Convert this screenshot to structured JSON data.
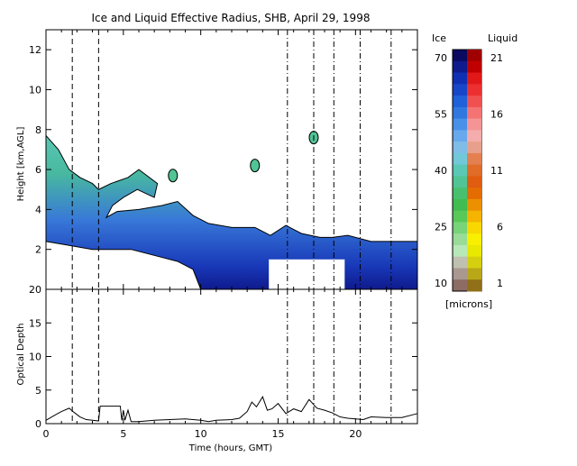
{
  "chart_data": [
    {
      "type": "heatmap",
      "title": "Ice and Liquid Effective Radius, SHB, April 29, 1998",
      "xlabel": "",
      "ylabel": "Height [km,AGL]",
      "xlim": [
        0,
        24
      ],
      "ylim": [
        0,
        13
      ],
      "xticks": [
        0,
        5,
        10,
        15,
        20
      ],
      "yticks": [
        2,
        4,
        6,
        8,
        10,
        12
      ],
      "grid": false,
      "vertical_lines": [
        {
          "x": 1.7,
          "style": "dashed"
        },
        {
          "x": 3.4,
          "style": "dashed"
        },
        {
          "x": 15.6,
          "style": "dash-dot"
        },
        {
          "x": 17.3,
          "style": "dash-dot"
        },
        {
          "x": 18.6,
          "style": "dash-dot"
        },
        {
          "x": 20.3,
          "style": "dash-dot"
        },
        {
          "x": 22.3,
          "style": "dash-dot"
        }
      ],
      "cloud_layer": {
        "top_km": [
          [
            0.0,
            7.7
          ],
          [
            0.8,
            7.0
          ],
          [
            1.5,
            6.0
          ],
          [
            2.2,
            5.6
          ],
          [
            3.0,
            5.3
          ],
          [
            3.4,
            5.0
          ],
          [
            4.2,
            5.3
          ],
          [
            5.3,
            5.6
          ],
          [
            6.0,
            6.0
          ],
          [
            7.2,
            5.3
          ],
          [
            7.0,
            4.6
          ],
          [
            5.9,
            5.0
          ],
          [
            5.0,
            4.6
          ],
          [
            4.3,
            4.2
          ],
          [
            3.9,
            3.6
          ],
          [
            4.6,
            3.9
          ],
          [
            6.0,
            4.0
          ],
          [
            7.5,
            4.2
          ],
          [
            8.5,
            4.4
          ],
          [
            9.5,
            3.7
          ],
          [
            10.5,
            3.3
          ],
          [
            12.0,
            3.1
          ],
          [
            13.5,
            3.1
          ],
          [
            14.5,
            2.7
          ],
          [
            15.5,
            3.2
          ],
          [
            16.5,
            2.8
          ],
          [
            17.7,
            2.6
          ],
          [
            18.5,
            2.6
          ],
          [
            19.5,
            2.7
          ],
          [
            21.0,
            2.4
          ],
          [
            24.0,
            2.4
          ]
        ],
        "base_km": [
          [
            0.0,
            2.4
          ],
          [
            1.5,
            2.2
          ],
          [
            3.0,
            2.0
          ],
          [
            5.5,
            2.0
          ],
          [
            7.5,
            1.6
          ],
          [
            8.5,
            1.4
          ],
          [
            9.5,
            1.0
          ],
          [
            10.0,
            0.0
          ],
          [
            24.0,
            0.0
          ]
        ],
        "gap_region": {
          "x": [
            14.4,
            19.3
          ],
          "y_km": [
            0.0,
            1.5
          ]
        },
        "isolated_patches": [
          [
            17.3,
            7.6
          ],
          [
            13.5,
            6.2
          ],
          [
            8.2,
            5.7
          ]
        ]
      }
    },
    {
      "type": "line",
      "title": "",
      "xlabel": "Time (hours, GMT)",
      "ylabel": "Optical Depth",
      "xlim": [
        0,
        24
      ],
      "ylim": [
        0,
        20
      ],
      "xticks": [
        0,
        5,
        10,
        15,
        20
      ],
      "xtick_labels": [
        "0",
        "5",
        "10",
        "15",
        "20"
      ],
      "yticks": [
        0,
        5,
        10,
        15,
        20
      ],
      "ytick_labels": [
        "0",
        "5",
        "10",
        "15",
        "20"
      ],
      "grid": false,
      "series": [
        {
          "x": [
            0.0,
            0.6,
            1.0,
            1.5,
            1.8,
            2.2,
            2.6,
            3.0,
            3.4,
            3.5,
            3.6,
            4.8,
            4.9,
            5.0,
            5.1,
            5.3,
            5.5,
            6.0,
            7.0,
            8.0,
            9.0,
            10.0,
            10.5,
            11.0,
            12.0,
            12.5,
            13.0,
            13.3,
            13.6,
            14.0,
            14.3,
            14.6,
            15.0,
            15.5,
            16.0,
            16.5,
            17.0,
            17.5,
            18.0,
            18.5,
            19.0,
            19.5,
            20.0,
            20.5,
            21.0,
            22.0,
            23.0,
            24.0
          ],
          "y": [
            0.5,
            1.3,
            1.8,
            2.3,
            1.7,
            1.0,
            0.6,
            0.5,
            0.4,
            2.6,
            2.6,
            2.6,
            0.5,
            2.0,
            0.5,
            2.0,
            0.3,
            0.3,
            0.5,
            0.6,
            0.7,
            0.5,
            0.3,
            0.5,
            0.6,
            0.8,
            1.8,
            3.2,
            2.5,
            4.0,
            2.0,
            2.2,
            3.0,
            1.5,
            2.2,
            1.8,
            3.6,
            2.3,
            2.0,
            1.6,
            1.0,
            0.8,
            0.7,
            0.6,
            1.0,
            0.9,
            0.9,
            1.5
          ]
        }
      ],
      "vertical_lines": [
        {
          "x": 1.7,
          "style": "dashed"
        },
        {
          "x": 3.4,
          "style": "dashed"
        },
        {
          "x": 15.6,
          "style": "dash-dot"
        },
        {
          "x": 17.3,
          "style": "dash-dot"
        },
        {
          "x": 18.6,
          "style": "dash-dot"
        },
        {
          "x": 20.3,
          "style": "dash-dot"
        },
        {
          "x": 22.3,
          "style": "dash-dot"
        }
      ]
    }
  ],
  "colorbar": {
    "ice_label": "Ice",
    "liquid_label": "Liquid",
    "units": "[microns]",
    "ice_ticks": [
      "70",
      "55",
      "40",
      "25",
      "10"
    ],
    "liquid_ticks": [
      "21",
      "16",
      "11",
      "6",
      "1"
    ],
    "ice_colors": [
      "#0a0a60",
      "#0f1a8c",
      "#1030b4",
      "#1846c8",
      "#2060d8",
      "#3078e0",
      "#4890e8",
      "#68a8ec",
      "#80bce8",
      "#70c8d8",
      "#5ac8b4",
      "#50c494",
      "#48c070",
      "#40bc50",
      "#58c858",
      "#78d478",
      "#98dc98",
      "#b8e8b8",
      "#c0c0b0",
      "#a89890",
      "#8c6c64"
    ],
    "liquid_colors": [
      "#a00000",
      "#c00000",
      "#e01818",
      "#ec3030",
      "#f05050",
      "#f47474",
      "#f49494",
      "#f4acac",
      "#e8a08c",
      "#e48050",
      "#e06c28",
      "#e05c10",
      "#e46c00",
      "#ec9000",
      "#f4b400",
      "#f8d800",
      "#f8f000",
      "#e8e800",
      "#d4d010",
      "#b8a818",
      "#907018"
    ]
  }
}
